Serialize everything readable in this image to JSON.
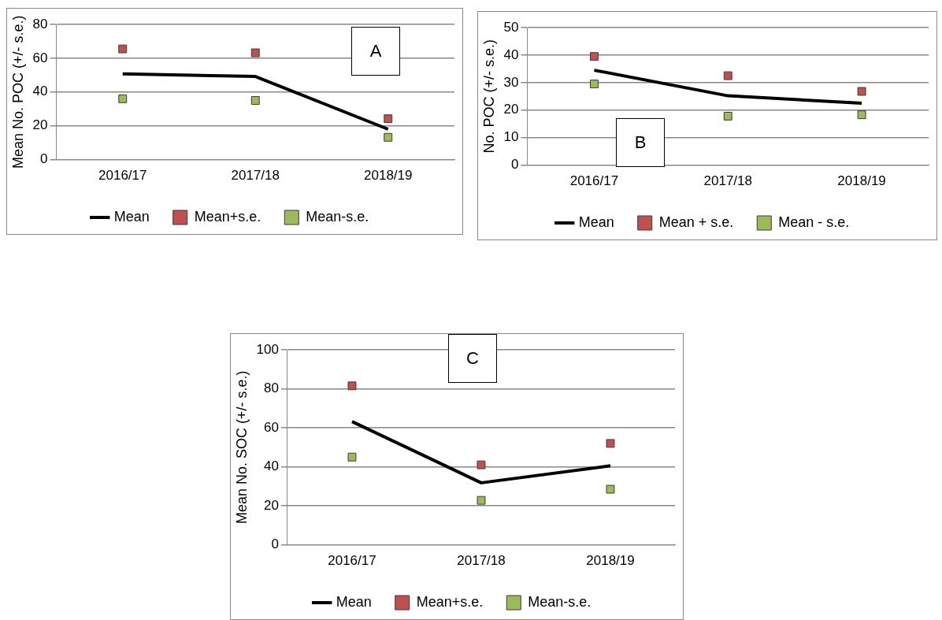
{
  "chart_data": [
    {
      "type": "line",
      "categories": [
        "2016/17",
        "2017/18",
        "2018/19"
      ],
      "ylabel": "Mean No. POC (+/- s.e.)",
      "ylim": [
        0,
        80
      ],
      "yticks": [
        0,
        20,
        40,
        60,
        80
      ],
      "grid": "y",
      "legend": "bottom",
      "annotations": [
        "A"
      ],
      "series": [
        {
          "name": "Mean",
          "color": "#000000",
          "marker": "none",
          "line_style": "solid",
          "values": [
            50.8,
            49.2,
            18
          ]
        },
        {
          "name": "Mean+s.e.",
          "type": "scatter",
          "color": "#c0504d",
          "marker": "square",
          "values": [
            65.5,
            63.2,
            24.2
          ]
        },
        {
          "name": "Mean-s.e.",
          "type": "scatter",
          "color": "#9bbb59",
          "marker": "square",
          "values": [
            36,
            35,
            13.2
          ]
        }
      ]
    },
    {
      "type": "line",
      "categories": [
        "2016/17",
        "2017/18",
        "2018/19"
      ],
      "ylabel": "No. POC (+/- s.e.)",
      "ylim": [
        0,
        50
      ],
      "yticks": [
        0,
        10,
        20,
        30,
        40,
        50
      ],
      "grid": "y",
      "legend": "bottom",
      "annotations": [
        "B"
      ],
      "series": [
        {
          "name": "Mean",
          "color": "#000000",
          "marker": "none",
          "line_style": "solid",
          "values": [
            34.5,
            25.2,
            22.5
          ]
        },
        {
          "name": "Mean + s.e.",
          "type": "scatter",
          "color": "#c0504d",
          "marker": "square",
          "values": [
            39.5,
            32.5,
            26.8
          ]
        },
        {
          "name": "Mean - s.e.",
          "type": "scatter",
          "color": "#9bbb59",
          "marker": "square",
          "values": [
            29.5,
            17.8,
            18.3
          ]
        }
      ]
    },
    {
      "type": "line",
      "categories": [
        "2016/17",
        "2017/18",
        "2018/19"
      ],
      "ylabel": "Mean No. SOC (+/- s.e.)",
      "ylim": [
        0,
        100
      ],
      "yticks": [
        0,
        20,
        40,
        60,
        80,
        100
      ],
      "grid": "y",
      "legend": "bottom",
      "annotations": [
        "C"
      ],
      "series": [
        {
          "name": "Mean",
          "color": "#000000",
          "marker": "none",
          "line_style": "solid",
          "values": [
            63.2,
            31.8,
            40.5
          ]
        },
        {
          "name": "Mean+s.e.",
          "type": "scatter",
          "color": "#c0504d",
          "marker": "square",
          "values": [
            81.5,
            41,
            52
          ]
        },
        {
          "name": "Mean-s.e.",
          "type": "scatter",
          "color": "#9bbb59",
          "marker": "square",
          "values": [
            45,
            22.8,
            28.5
          ]
        }
      ]
    }
  ]
}
